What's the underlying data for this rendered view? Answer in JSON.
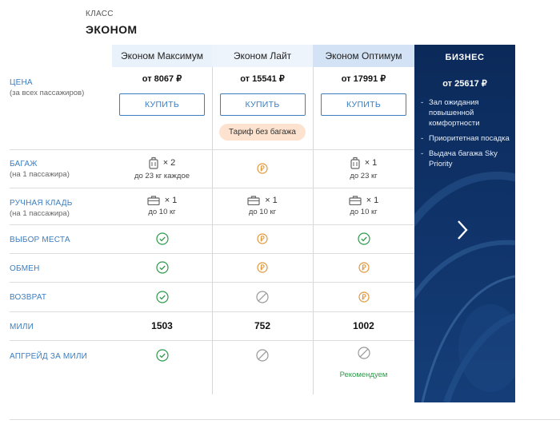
{
  "header": {
    "class_label": "КЛАСС",
    "class_name": "ЭКОНОМ"
  },
  "columns": [
    {
      "name": "Эконом Максимум",
      "price": "от 8067 ₽",
      "buy_label": "КУПИТЬ"
    },
    {
      "name": "Эконом Лайт",
      "price": "от 15541 ₽",
      "buy_label": "КУПИТЬ",
      "badge": "Тариф без багажа"
    },
    {
      "name": "Эконом Оптимум",
      "price": "от 17991 ₽",
      "buy_label": "КУПИТЬ"
    }
  ],
  "rows": {
    "price": {
      "label": "ЦЕНА",
      "sub": "(за всех пассажиров)"
    },
    "baggage": {
      "label": "БАГАЖ",
      "sub": "(на 1 пассажира)"
    },
    "hand": {
      "label": "РУЧНАЯ КЛАДЬ",
      "sub": "(на 1 пассажира)"
    },
    "seat": {
      "label": "ВЫБОР МЕСТА"
    },
    "exchange": {
      "label": "ОБМЕН"
    },
    "refund": {
      "label": "ВОЗВРАТ"
    },
    "miles": {
      "label": "МИЛИ"
    },
    "upgrade": {
      "label": "АПГРЕЙД ЗА МИЛИ"
    }
  },
  "baggage": [
    {
      "qty": "× 2",
      "note": "до 23 кг каждое"
    },
    {
      "icon": "ruble-paid-icon"
    },
    {
      "qty": "× 1",
      "note": "до 23 кг"
    }
  ],
  "hand": [
    {
      "qty": "× 1",
      "note": "до 10 кг"
    },
    {
      "qty": "× 1",
      "note": "до 10 кг"
    },
    {
      "qty": "× 1",
      "note": "до 10 кг"
    }
  ],
  "miles": [
    "1503",
    "752",
    "1002"
  ],
  "upgrade_recommend": "Рекомендуем",
  "business": {
    "title": "БИЗНЕС",
    "price": "от 25617 ₽",
    "features": [
      "Зал ожидания повышенной комфортности",
      "Приоритетная посадка",
      "Выдача багажа Sky Priority"
    ],
    "dash": "-"
  },
  "colors": {
    "accent": "#3b7ec1",
    "ok": "#2f9a4b",
    "paid": "#e0973a",
    "business_bg": "#0c2b5c"
  }
}
